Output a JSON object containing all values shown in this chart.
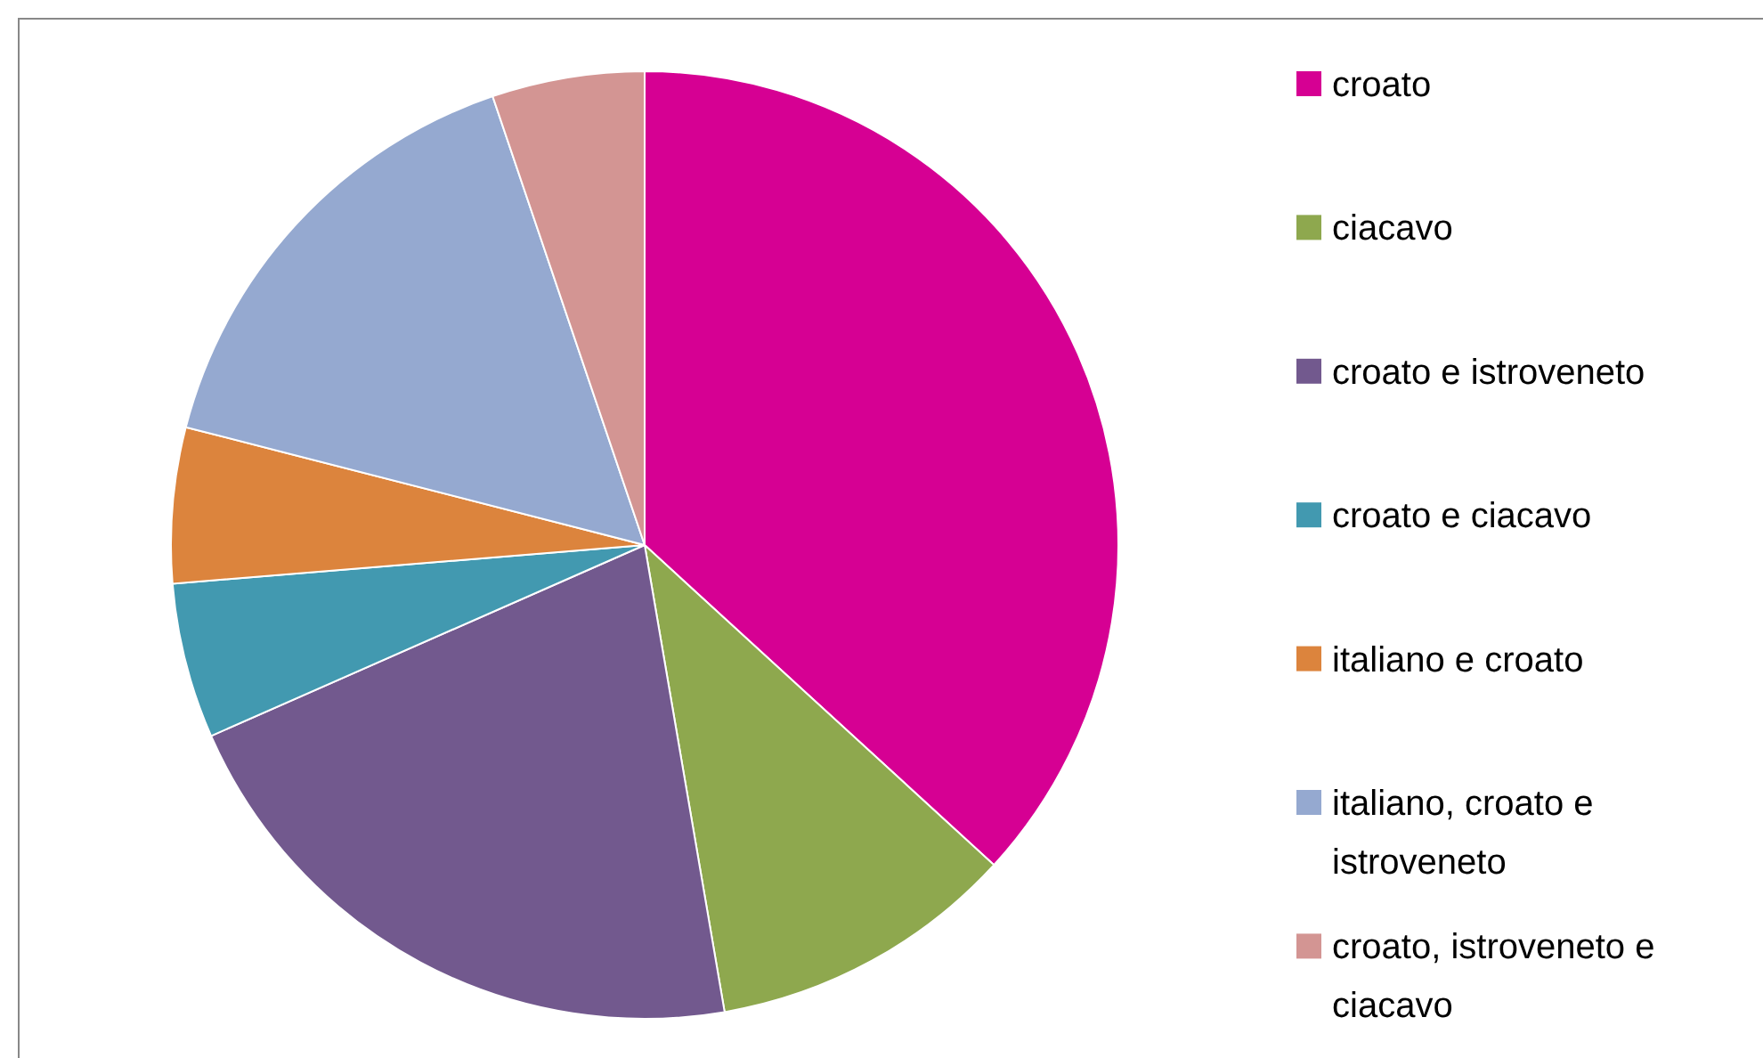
{
  "chart_data": {
    "type": "pie",
    "categories": [
      "croato",
      "ciacavo",
      "croato e istroveneto",
      "croato e ciacavo",
      "italiano e croato",
      "italiano, croato e istroveneto",
      "croato, istroveneto e ciacavo"
    ],
    "values": [
      36.8,
      10.5,
      21.1,
      5.3,
      5.3,
      15.8,
      5.2
    ],
    "colors": [
      "#d60093",
      "#8ea84e",
      "#72598e",
      "#4299b0",
      "#dc843d",
      "#95a9d0",
      "#d39593"
    ],
    "legend": "right"
  }
}
